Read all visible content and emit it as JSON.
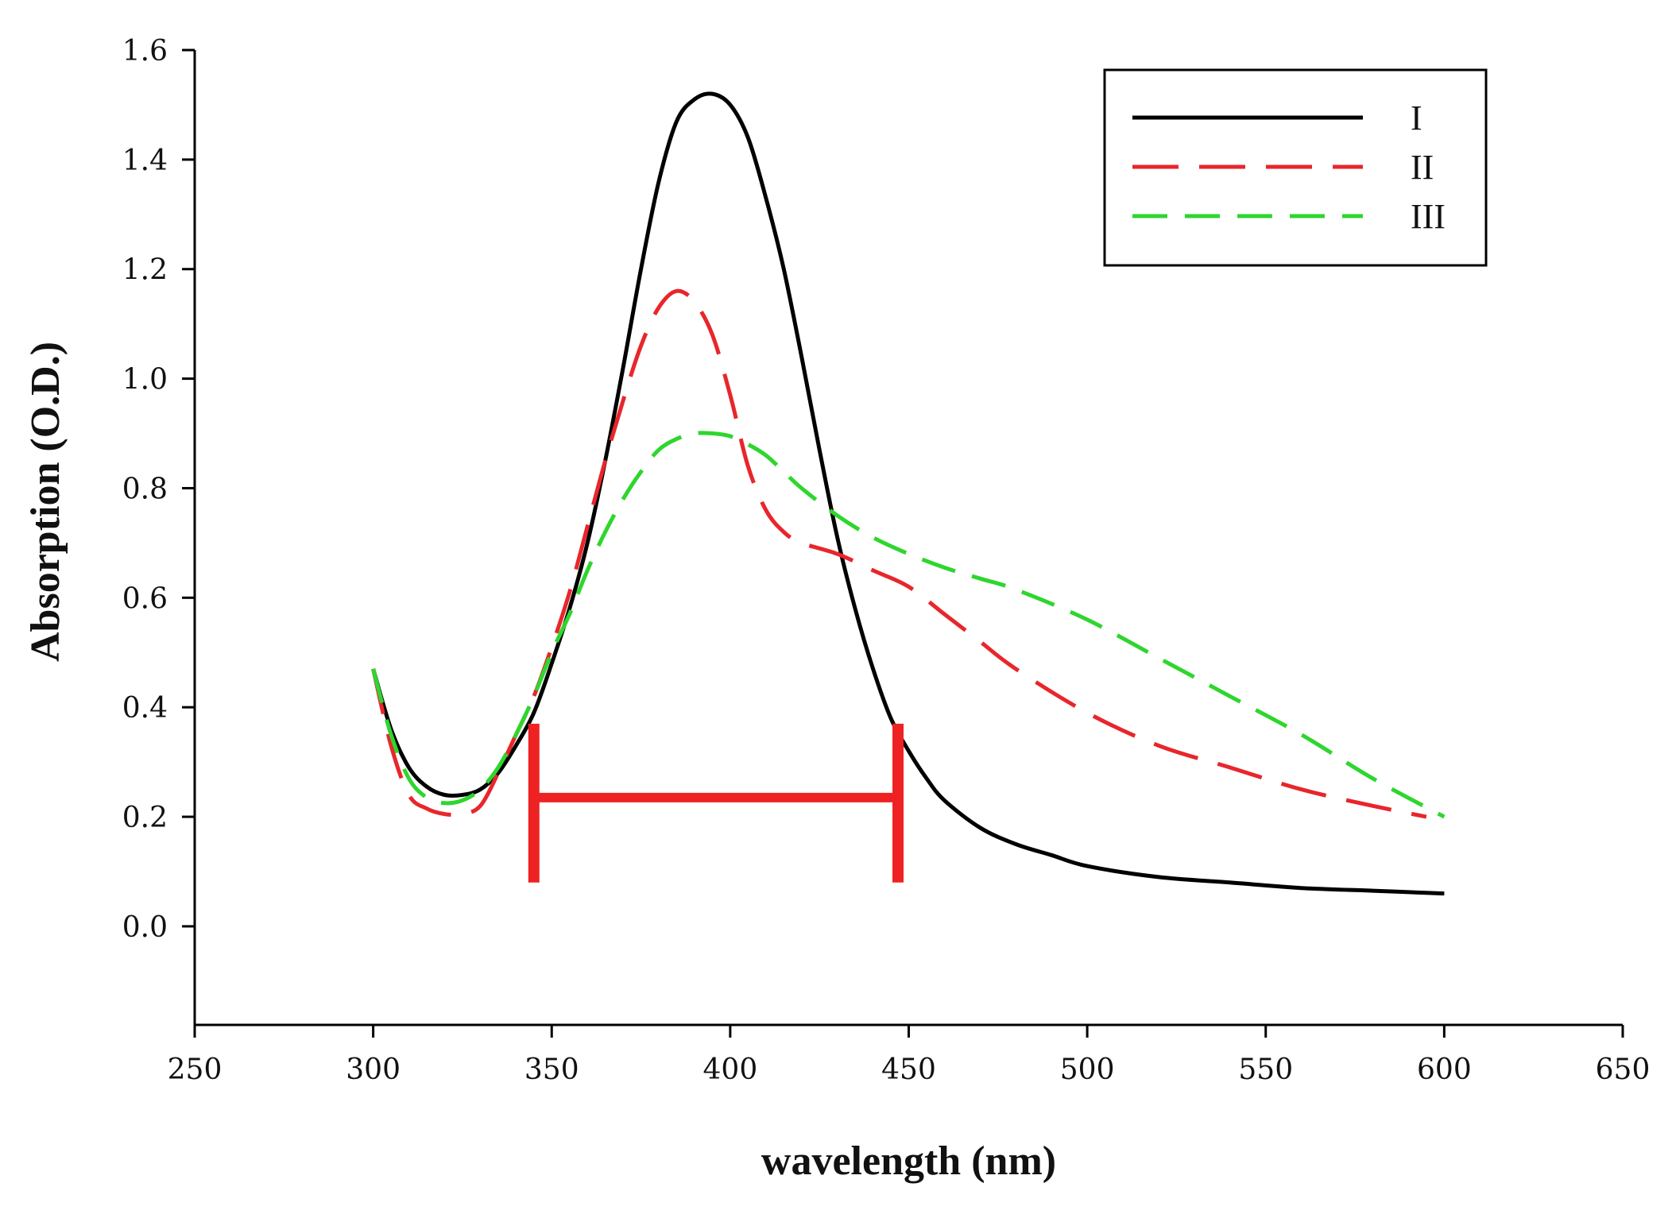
{
  "chart_data": {
    "type": "line",
    "title": "",
    "xlabel": "wavelength (nm)",
    "ylabel": "Absorption (O.D.)",
    "xlim": [
      250,
      650
    ],
    "ylim": [
      -0.18,
      1.6
    ],
    "xticks": [
      250,
      300,
      350,
      400,
      450,
      500,
      550,
      600,
      650
    ],
    "xtick_labels": [
      "250",
      "300",
      "350",
      "400",
      "450",
      "500",
      "550",
      "600",
      "650"
    ],
    "yticks": [
      0.0,
      0.2,
      0.4,
      0.6,
      0.8,
      1.0,
      1.2,
      1.4,
      1.6
    ],
    "ytick_labels": [
      "0.0",
      "0.2",
      "0.4",
      "0.6",
      "0.8",
      "1.0",
      "1.2",
      "1.4",
      "1.6"
    ],
    "grid": false,
    "legend_position": "top-right",
    "series": [
      {
        "name": "I",
        "color": "#000000",
        "style": "solid",
        "x": [
          300,
          305,
          310,
          315,
          320,
          325,
          330,
          335,
          340,
          345,
          350,
          355,
          360,
          365,
          370,
          375,
          380,
          385,
          390,
          395,
          400,
          405,
          410,
          415,
          420,
          425,
          430,
          435,
          440,
          445,
          450,
          455,
          460,
          470,
          480,
          490,
          500,
          520,
          540,
          560,
          580,
          600
        ],
        "y": [
          0.47,
          0.36,
          0.29,
          0.255,
          0.24,
          0.24,
          0.25,
          0.28,
          0.33,
          0.39,
          0.48,
          0.58,
          0.7,
          0.85,
          1.02,
          1.2,
          1.36,
          1.47,
          1.51,
          1.52,
          1.5,
          1.44,
          1.33,
          1.2,
          1.04,
          0.87,
          0.71,
          0.58,
          0.47,
          0.38,
          0.32,
          0.27,
          0.23,
          0.18,
          0.15,
          0.13,
          0.11,
          0.09,
          0.08,
          0.07,
          0.065,
          0.06
        ]
      },
      {
        "name": "II",
        "color": "#e8262b",
        "style": "long-dash",
        "x": [
          300,
          305,
          310,
          315,
          320,
          325,
          330,
          335,
          340,
          345,
          350,
          355,
          360,
          365,
          370,
          375,
          380,
          385,
          390,
          395,
          400,
          405,
          410,
          415,
          420,
          430,
          440,
          450,
          460,
          470,
          480,
          500,
          520,
          540,
          560,
          580,
          595
        ],
        "y": [
          0.47,
          0.33,
          0.24,
          0.215,
          0.205,
          0.205,
          0.22,
          0.28,
          0.35,
          0.42,
          0.51,
          0.61,
          0.73,
          0.85,
          0.96,
          1.06,
          1.13,
          1.16,
          1.14,
          1.08,
          0.97,
          0.84,
          0.76,
          0.72,
          0.7,
          0.68,
          0.65,
          0.62,
          0.57,
          0.52,
          0.47,
          0.39,
          0.33,
          0.29,
          0.25,
          0.22,
          0.2
        ]
      },
      {
        "name": "III",
        "color": "#2ed62e",
        "style": "dash",
        "x": [
          300,
          305,
          310,
          315,
          320,
          325,
          330,
          335,
          340,
          345,
          350,
          355,
          360,
          365,
          370,
          375,
          380,
          385,
          390,
          395,
          400,
          405,
          410,
          415,
          420,
          430,
          440,
          450,
          460,
          470,
          480,
          500,
          520,
          540,
          560,
          580,
          600
        ],
        "y": [
          0.47,
          0.35,
          0.27,
          0.235,
          0.225,
          0.23,
          0.25,
          0.29,
          0.35,
          0.42,
          0.5,
          0.57,
          0.65,
          0.72,
          0.78,
          0.83,
          0.87,
          0.89,
          0.9,
          0.9,
          0.895,
          0.88,
          0.86,
          0.83,
          0.8,
          0.75,
          0.71,
          0.68,
          0.655,
          0.635,
          0.615,
          0.56,
          0.49,
          0.42,
          0.35,
          0.27,
          0.2
        ]
      }
    ],
    "annotations": [
      {
        "type": "range-bracket",
        "color": "#ee2222",
        "x_start": 345,
        "x_end": 447,
        "y_level": 0.235,
        "y_bottom": 0.08,
        "y_top": 0.37
      }
    ]
  }
}
